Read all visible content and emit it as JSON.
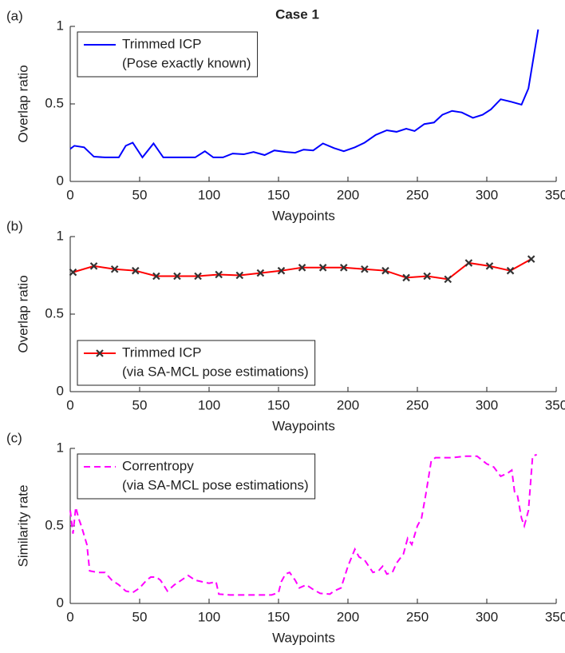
{
  "chart_data": [
    {
      "type": "line",
      "panel_label": "(a)",
      "title": "Case 1",
      "xlabel": "Waypoints",
      "ylabel": "Overlap ratio",
      "xlim": [
        0,
        350
      ],
      "xticks": [
        0,
        50,
        100,
        150,
        200,
        250,
        300,
        350
      ],
      "ylim": [
        0,
        1
      ],
      "yticks": [
        0,
        0.5,
        1
      ],
      "legend": "upper left",
      "x": [
        0,
        3,
        10,
        17,
        25,
        35,
        40,
        45,
        52,
        60,
        67,
        75,
        90,
        97,
        103,
        110,
        117,
        125,
        132,
        140,
        147,
        155,
        162,
        168,
        175,
        182,
        190,
        197,
        205,
        212,
        220,
        228,
        235,
        242,
        248,
        255,
        262,
        268,
        275,
        282,
        290,
        297,
        303,
        310,
        317,
        325,
        330,
        337
      ],
      "series": [
        {
          "name": [
            "Trimmed ICP",
            "(Pose exactly known)"
          ],
          "color": "#0000ff",
          "style": "solid",
          "values": [
            0.21,
            0.23,
            0.22,
            0.16,
            0.155,
            0.155,
            0.23,
            0.25,
            0.155,
            0.245,
            0.155,
            0.155,
            0.155,
            0.195,
            0.155,
            0.155,
            0.18,
            0.175,
            0.19,
            0.17,
            0.2,
            0.19,
            0.185,
            0.205,
            0.2,
            0.245,
            0.215,
            0.195,
            0.22,
            0.25,
            0.3,
            0.33,
            0.32,
            0.34,
            0.325,
            0.37,
            0.38,
            0.43,
            0.455,
            0.445,
            0.41,
            0.43,
            0.465,
            0.53,
            0.515,
            0.495,
            0.6,
            0.98
          ]
        }
      ]
    },
    {
      "type": "line",
      "panel_label": "(b)",
      "xlabel": "Waypoints",
      "ylabel": "Overlap ratio",
      "xlim": [
        0,
        350
      ],
      "xticks": [
        0,
        50,
        100,
        150,
        200,
        250,
        300,
        350
      ],
      "ylim": [
        0,
        1
      ],
      "yticks": [
        0,
        0.5,
        1
      ],
      "legend": "lower left",
      "x": [
        2,
        17,
        32,
        47,
        62,
        77,
        92,
        107,
        122,
        137,
        152,
        167,
        182,
        197,
        212,
        227,
        242,
        257,
        272,
        287,
        302,
        317,
        332
      ],
      "series": [
        {
          "name": [
            "Trimmed ICP",
            "(via SA-MCL pose estimations)"
          ],
          "color": "#ff0000",
          "style": "solid",
          "marker": "x",
          "marker_color": "#333333",
          "values": [
            0.77,
            0.81,
            0.79,
            0.78,
            0.745,
            0.745,
            0.745,
            0.755,
            0.75,
            0.765,
            0.78,
            0.8,
            0.8,
            0.8,
            0.79,
            0.78,
            0.735,
            0.745,
            0.725,
            0.83,
            0.81,
            0.78,
            0.855
          ]
        }
      ]
    },
    {
      "type": "line",
      "panel_label": "(c)",
      "xlabel": "Waypoints",
      "ylabel": "Similarity rate",
      "xlim": [
        0,
        350
      ],
      "xticks": [
        0,
        50,
        100,
        150,
        200,
        250,
        300,
        350
      ],
      "ylim": [
        0,
        1
      ],
      "yticks": [
        0,
        0.5,
        1
      ],
      "legend": "upper left",
      "x": [
        0,
        2,
        4,
        6,
        8,
        12,
        14,
        20,
        25,
        30,
        35,
        40,
        45,
        50,
        55,
        58,
        62,
        65,
        70,
        75,
        80,
        85,
        90,
        95,
        100,
        105,
        107,
        115,
        130,
        145,
        150,
        152,
        155,
        158,
        162,
        165,
        170,
        175,
        180,
        187,
        190,
        195,
        200,
        205,
        208,
        212,
        215,
        218,
        222,
        225,
        228,
        232,
        235,
        240,
        243,
        246,
        250,
        253,
        256,
        260,
        263,
        275,
        285,
        293,
        300,
        305,
        310,
        315,
        318,
        320,
        322,
        325,
        327,
        330,
        333,
        336
      ],
      "series": [
        {
          "name": [
            "Correntropy",
            "(via SA-MCL pose estimations)"
          ],
          "color": "#ff00ff",
          "style": "dashed",
          "values": [
            0.6,
            0.45,
            0.62,
            0.55,
            0.5,
            0.38,
            0.21,
            0.2,
            0.2,
            0.15,
            0.12,
            0.08,
            0.07,
            0.1,
            0.15,
            0.17,
            0.17,
            0.15,
            0.08,
            0.12,
            0.15,
            0.18,
            0.15,
            0.14,
            0.13,
            0.14,
            0.06,
            0.055,
            0.055,
            0.055,
            0.07,
            0.14,
            0.19,
            0.2,
            0.15,
            0.1,
            0.12,
            0.09,
            0.065,
            0.06,
            0.08,
            0.1,
            0.24,
            0.35,
            0.3,
            0.28,
            0.24,
            0.2,
            0.21,
            0.24,
            0.19,
            0.2,
            0.26,
            0.32,
            0.42,
            0.38,
            0.5,
            0.55,
            0.7,
            0.92,
            0.94,
            0.94,
            0.95,
            0.95,
            0.9,
            0.88,
            0.82,
            0.84,
            0.86,
            0.72,
            0.7,
            0.55,
            0.5,
            0.6,
            0.95,
            0.96
          ]
        }
      ]
    }
  ]
}
